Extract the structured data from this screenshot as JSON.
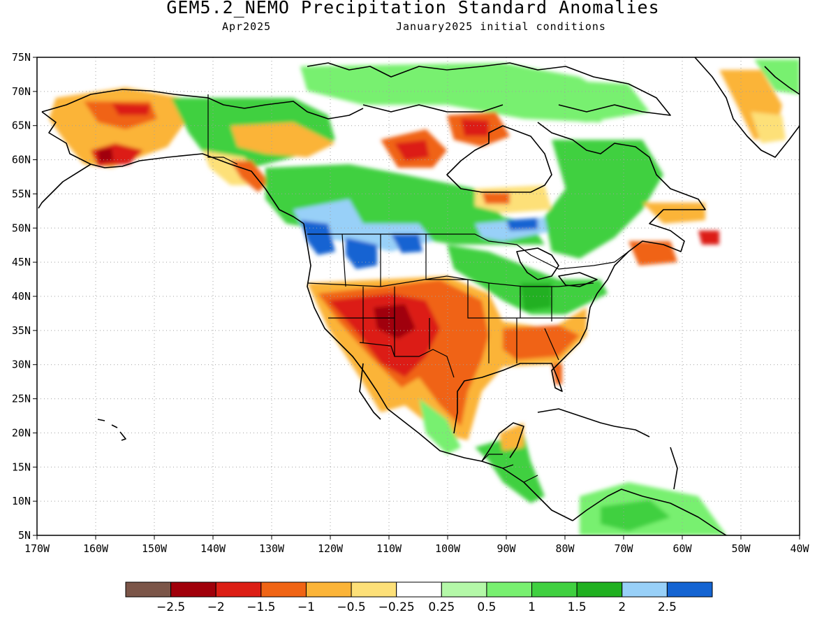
{
  "title": "GEM5.2_NEMO Precipitation Standard Anomalies",
  "subtitle_left": "Apr2025",
  "subtitle_right": "January2025 initial conditions",
  "map": {
    "extent": {
      "lon": [
        -170,
        -40
      ],
      "lat": [
        5,
        75
      ]
    },
    "lat_ticks": [
      "75N",
      "70N",
      "65N",
      "60N",
      "55N",
      "50N",
      "45N",
      "40N",
      "35N",
      "30N",
      "25N",
      "20N",
      "15N",
      "10N",
      "5N"
    ],
    "lon_ticks": [
      "170W",
      "160W",
      "150W",
      "140W",
      "130W",
      "120W",
      "110W",
      "100W",
      "90W",
      "80W",
      "70W",
      "60W",
      "50W",
      "40W"
    ],
    "grid": "dotted"
  },
  "colorbar": {
    "colors": [
      "#7b5548",
      "#a0000a",
      "#dc1e14",
      "#f06414",
      "#fbb438",
      "#fde078",
      "#ffffff",
      "#b4f8a8",
      "#78f070",
      "#40d040",
      "#20b020",
      "#98d0f8",
      "#1464d2"
    ],
    "labels": [
      "-2.5",
      "-2",
      "-1.5",
      "-1",
      "-0.5",
      "-0.25",
      "0.25",
      "0.5",
      "1",
      "1.5",
      "2",
      "2.5"
    ]
  },
  "colors": {
    "brown": "#7b5548",
    "darkred": "#a0000a",
    "red": "#dc1e14",
    "orange": "#f06414",
    "lightorange": "#fbb438",
    "yellow": "#fde078",
    "palegreen": "#b4f8a8",
    "lightgreen": "#78f070",
    "green": "#40d040",
    "darkgreen": "#20b020",
    "lightblue": "#98d0f8",
    "blue": "#1464d2"
  }
}
